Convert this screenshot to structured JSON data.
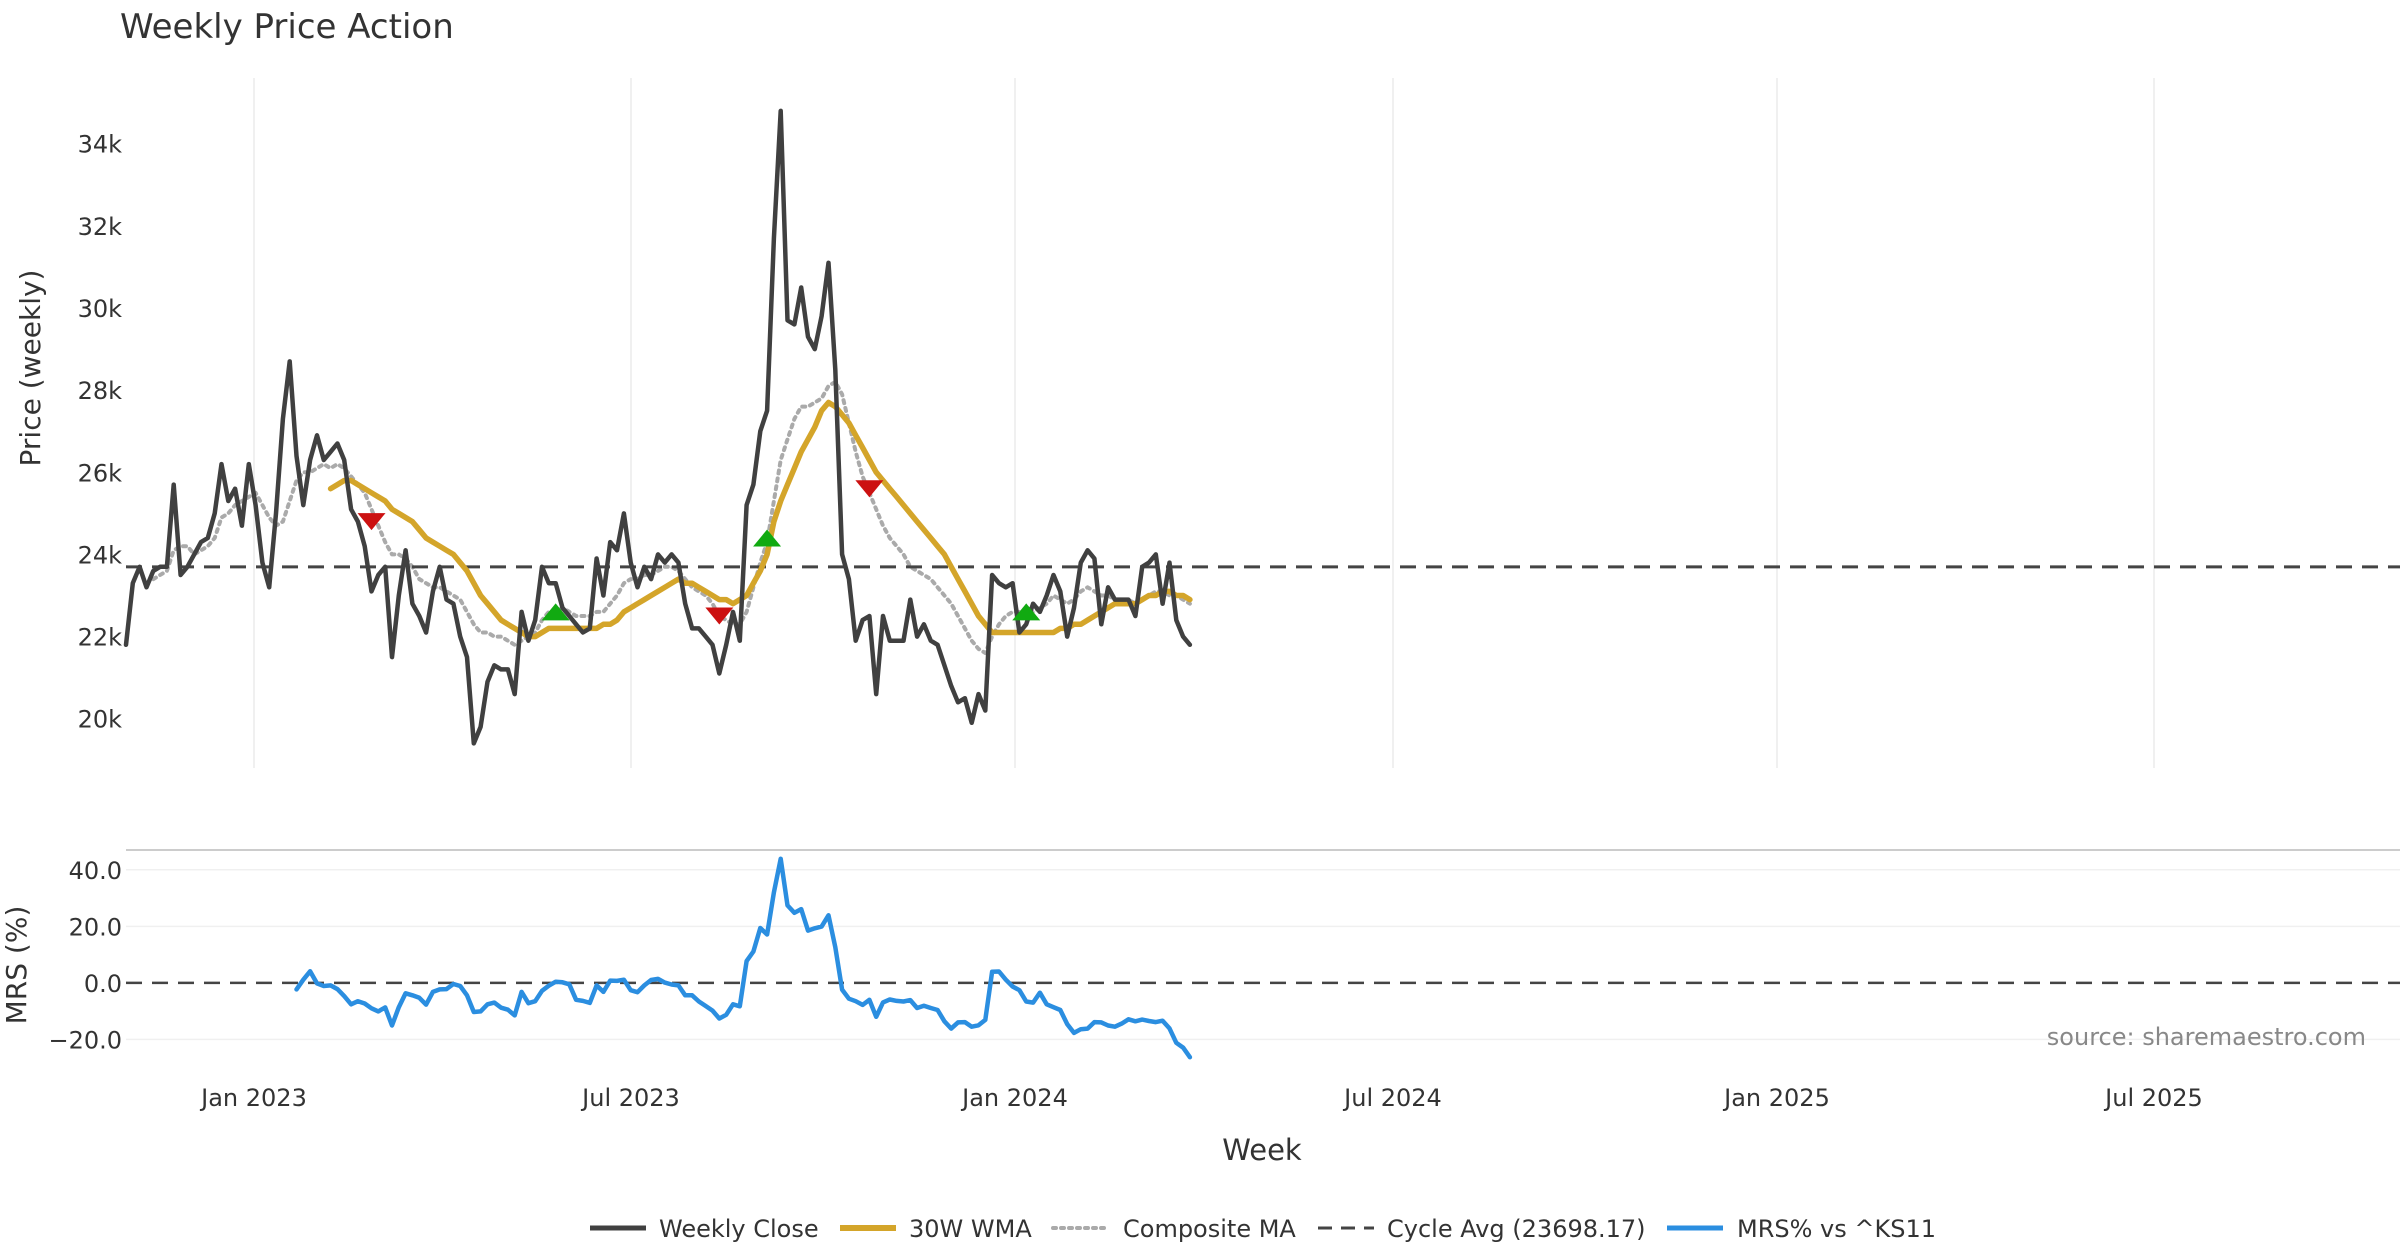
{
  "chart_data": {
    "type": "line",
    "title": "Weekly Price Action",
    "xlabel": "Week",
    "x_tick_labels": [
      "Jan 2023",
      "Jul 2023",
      "Jan 2024",
      "Jul 2024",
      "Jan 2025",
      "Jul 2025"
    ],
    "source_label": "source: sharemaestro.com",
    "price_panel": {
      "ylabel": "Price (weekly)",
      "ylim": [
        18800,
        35600
      ],
      "y_ticks": [
        20000,
        22000,
        24000,
        26000,
        28000,
        30000,
        32000,
        34000
      ],
      "y_tick_labels": [
        "20k",
        "22k",
        "24k",
        "26k",
        "28k",
        "30k",
        "32k",
        "34k"
      ],
      "grid": "vertical",
      "series": [
        {
          "name": "Weekly Close",
          "color": "#404040",
          "style": "solid",
          "values": [
            21800,
            23300,
            23700,
            23200,
            23600,
            23700,
            23700,
            25700,
            23500,
            23700,
            24000,
            24300,
            24400,
            25000,
            26200,
            25300,
            25600,
            24700,
            26200,
            25200,
            23800,
            23200,
            25000,
            27300,
            28700,
            26400,
            25200,
            26300,
            26900,
            26300,
            26500,
            26700,
            26300,
            25100,
            24800,
            24200,
            23100,
            23500,
            23700,
            21500,
            23000,
            24100,
            22800,
            22500,
            22100,
            23100,
            23700,
            22900,
            22800,
            22000,
            21500,
            19400,
            19800,
            20900,
            21300,
            21200,
            21200,
            20600,
            22600,
            21900,
            22400,
            23700,
            23300,
            23300,
            22700,
            22500,
            22300,
            22100,
            22200,
            23900,
            23000,
            24300,
            24100,
            25000,
            23800,
            23200,
            23700,
            23400,
            24000,
            23800,
            24000,
            23800,
            22800,
            22200,
            22200,
            22000,
            21800,
            21100,
            21800,
            22600,
            21900,
            25200,
            25700,
            27000,
            27500,
            31700,
            34800,
            29700,
            29600,
            30500,
            29300,
            29000,
            29800,
            31100,
            28500,
            24000,
            23400,
            21900,
            22400,
            22500,
            20600,
            22500,
            21900,
            21900,
            21900,
            22900,
            22000,
            22300,
            21900,
            21800,
            21300,
            20800,
            20400,
            20500,
            19900,
            20600,
            20200,
            23500,
            23300,
            23200,
            23300,
            22100,
            22300,
            22800,
            22600,
            23000,
            23500,
            23100,
            22000,
            22700,
            23800,
            24100,
            23900,
            22300,
            23200,
            22900,
            22900,
            22900,
            22500,
            23700,
            23800,
            24000,
            22800,
            23800,
            22400,
            22000,
            21800
          ]
        },
        {
          "name": "30W WMA",
          "color": "#d4a52a",
          "style": "solid",
          "values": [
            null,
            null,
            null,
            null,
            null,
            null,
            null,
            null,
            null,
            null,
            null,
            null,
            null,
            null,
            null,
            null,
            null,
            null,
            null,
            null,
            null,
            null,
            null,
            null,
            null,
            null,
            null,
            null,
            null,
            null,
            25600,
            25700,
            25800,
            25800,
            25700,
            25600,
            25500,
            25400,
            25300,
            25100,
            25000,
            24900,
            24800,
            24600,
            24400,
            24300,
            24200,
            24100,
            24000,
            23800,
            23600,
            23300,
            23000,
            22800,
            22600,
            22400,
            22300,
            22200,
            22100,
            22000,
            22000,
            22100,
            22200,
            22200,
            22200,
            22200,
            22200,
            22200,
            22200,
            22200,
            22300,
            22300,
            22400,
            22600,
            22700,
            22800,
            22900,
            23000,
            23100,
            23200,
            23300,
            23400,
            23300,
            23300,
            23200,
            23100,
            23000,
            22900,
            22900,
            22800,
            22900,
            23000,
            23300,
            23600,
            24000,
            24800,
            25300,
            25700,
            26100,
            26500,
            26800,
            27100,
            27500,
            27700,
            27600,
            27400,
            27200,
            26900,
            26600,
            26300,
            26000,
            25800,
            25600,
            25400,
            25200,
            25000,
            24800,
            24600,
            24400,
            24200,
            24000,
            23700,
            23400,
            23100,
            22800,
            22500,
            22300,
            22100,
            22100,
            22100,
            22100,
            22100,
            22100,
            22100,
            22100,
            22100,
            22100,
            22200,
            22200,
            22300,
            22300,
            22400,
            22500,
            22600,
            22700,
            22800,
            22800,
            22800,
            22800,
            22900,
            23000,
            23000,
            23100,
            23100,
            23000,
            23000,
            22900
          ]
        },
        {
          "name": "Composite MA",
          "color": "#aaaaaa",
          "style": "dotted",
          "values": [
            null,
            null,
            null,
            null,
            23400,
            23500,
            23600,
            24100,
            24200,
            24200,
            24000,
            24100,
            24200,
            24400,
            24900,
            25000,
            25200,
            25300,
            25400,
            25500,
            25200,
            24900,
            24700,
            24800,
            25300,
            25800,
            26000,
            26000,
            26100,
            26200,
            26100,
            26200,
            26100,
            25900,
            25700,
            25500,
            25100,
            24700,
            24300,
            24000,
            24000,
            23900,
            23700,
            23400,
            23300,
            23200,
            23200,
            23100,
            23000,
            22900,
            22600,
            22300,
            22100,
            22100,
            22000,
            22000,
            21900,
            21800,
            21900,
            22000,
            22100,
            22400,
            22600,
            22600,
            22700,
            22600,
            22500,
            22500,
            22500,
            22600,
            22600,
            22800,
            23000,
            23300,
            23400,
            23400,
            23500,
            23500,
            23600,
            23700,
            23700,
            23600,
            23400,
            23200,
            23100,
            23000,
            22800,
            22500,
            22400,
            22300,
            22300,
            22600,
            23200,
            23800,
            24300,
            25300,
            26300,
            26800,
            27300,
            27600,
            27600,
            27700,
            27800,
            28100,
            28200,
            27900,
            27200,
            26500,
            25900,
            25500,
            25100,
            24700,
            24400,
            24200,
            24000,
            23700,
            23600,
            23500,
            23400,
            23200,
            23000,
            22800,
            22500,
            22200,
            21900,
            21700,
            21600,
            22000,
            22300,
            22500,
            22600,
            22600,
            22500,
            22600,
            22700,
            22800,
            23000,
            22900,
            22800,
            22900,
            23100,
            23200,
            23100,
            23000,
            23000,
            22900,
            22900,
            22900,
            22800,
            22900,
            23000,
            23100,
            23100,
            23000,
            23000,
            22900,
            22800
          ]
        },
        {
          "name": "Cycle Avg (23698.17)",
          "color": "#444444",
          "style": "dashed",
          "constant": 23698.17
        }
      ],
      "markers": [
        {
          "index": 36,
          "value": 24800,
          "kind": "sell",
          "color": "#cc1111"
        },
        {
          "index": 63,
          "value": 22600,
          "kind": "buy",
          "color": "#11aa11"
        },
        {
          "index": 87,
          "value": 22500,
          "kind": "sell",
          "color": "#cc1111"
        },
        {
          "index": 94,
          "value": 24400,
          "kind": "buy",
          "color": "#11aa11"
        },
        {
          "index": 109,
          "value": 25600,
          "kind": "sell",
          "color": "#cc1111"
        },
        {
          "index": 132,
          "value": 22600,
          "kind": "buy",
          "color": "#11aa11"
        }
      ]
    },
    "mrs_panel": {
      "ylabel": "MRS (%)",
      "ylim": [
        -28,
        47
      ],
      "y_ticks": [
        -20,
        0,
        20,
        40
      ],
      "y_tick_labels": [
        "−20.0",
        "0.0",
        "20.0",
        "40.0"
      ],
      "zero_line": 0,
      "series": [
        {
          "name": "MRS% vs ^KS11",
          "color": "#2b8ee0",
          "style": "solid",
          "start_index": 25,
          "values": [
            -2.3,
            1.1,
            4.1,
            -0.2,
            -1.1,
            -0.9,
            -2.2,
            -4.7,
            -7.6,
            -6.5,
            -7.3,
            -9.0,
            -10.1,
            -8.7,
            -15.1,
            -8.6,
            -3.7,
            -4.4,
            -5.3,
            -7.7,
            -3.2,
            -2.3,
            -2.2,
            -0.4,
            -1.1,
            -4.4,
            -10.3,
            -10.1,
            -7.6,
            -7.0,
            -8.8,
            -9.5,
            -11.5,
            -3.2,
            -7.2,
            -6.5,
            -2.8,
            -1.0,
            0.4,
            0.2,
            -0.5,
            -6.0,
            -6.4,
            -7.1,
            -0.9,
            -3.2,
            0.8,
            0.7,
            1.1,
            -2.6,
            -3.3,
            -0.9,
            1.0,
            1.4,
            0.1,
            -0.6,
            -0.9,
            -4.4,
            -4.4,
            -6.6,
            -8.2,
            -9.8,
            -12.6,
            -11.3,
            -7.6,
            -8.3,
            7.7,
            11.1,
            19.4,
            17.1,
            32.0,
            43.9,
            27.4,
            24.8,
            26.1,
            18.5,
            19.3,
            19.9,
            23.9,
            12.6,
            -2.4,
            -5.6,
            -6.5,
            -7.8,
            -6.0,
            -12.0,
            -6.9,
            -5.9,
            -6.4,
            -6.6,
            -6.1,
            -8.9,
            -8.1,
            -8.9,
            -9.6,
            -13.6,
            -16.2,
            -14.0,
            -13.9,
            -15.5,
            -15.0,
            -13.1,
            3.9,
            4.0,
            1.1,
            -1.3,
            -2.6,
            -6.6,
            -7.0,
            -3.5,
            -7.6,
            -8.6,
            -9.6,
            -14.6,
            -17.7,
            -16.4,
            -16.2,
            -13.9,
            -14.0,
            -15.1,
            -15.5,
            -14.4,
            -12.9,
            -13.6,
            -13.0,
            -13.5,
            -13.9,
            -13.4,
            -16.1,
            -21.2,
            -22.9,
            -26.3
          ]
        }
      ]
    },
    "legend": {
      "placement": "bottom-center",
      "entries": [
        "Weekly Close",
        "30W WMA",
        "Composite MA",
        "Cycle Avg (23698.17)",
        "MRS% vs ^KS11"
      ]
    }
  }
}
